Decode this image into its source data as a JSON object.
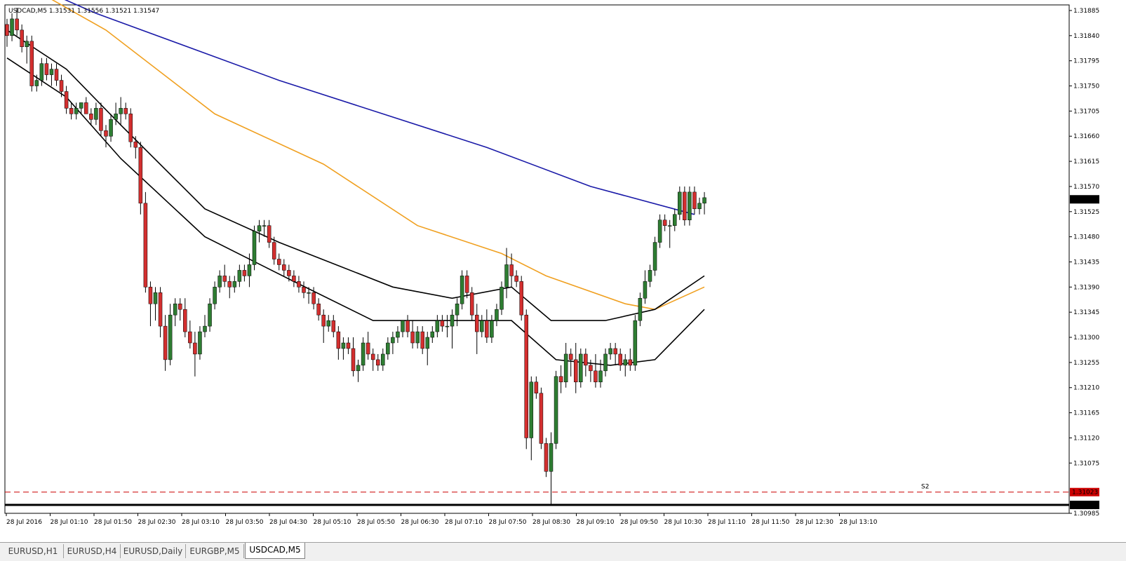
{
  "chart": {
    "symbol_header": "USDCAD,M5  1.31531 1.31556 1.31521 1.31547",
    "colors": {
      "background": "#ffffff",
      "bull": "#2e7d32",
      "bear": "#d32f2f",
      "wick": "#000000",
      "ma_blue": "#1a1aa8",
      "ma_orange": "#f0a020",
      "ma_black": "#000000",
      "s2_line": "#cc0000",
      "support_line": "#000000",
      "current_price_bg": "#000000",
      "s2_label_bg": "#cc0000"
    },
    "s2_label": "S2",
    "current_price_label": "1.31547",
    "s2_price_label": "1.31023",
    "support_price_label": "1.31000"
  },
  "tabs": [
    {
      "label": "EURUSD,H1",
      "active": false
    },
    {
      "label": "EURUSD,H4",
      "active": false
    },
    {
      "label": "EURUSD,Daily",
      "active": false
    },
    {
      "label": "EURGBP,M5",
      "active": false
    },
    {
      "label": "USDCAD,M5",
      "active": true
    }
  ],
  "chart_data": {
    "type": "candlestick",
    "symbol": "USDCAD",
    "timeframe": "M5",
    "header_ohlc": {
      "open": 1.31531,
      "high": 1.31556,
      "low": 1.31521,
      "close": 1.31547
    },
    "ylim": [
      1.30985,
      1.31895
    ],
    "y_ticks": [
      "1.31885",
      "1.31840",
      "1.31795",
      "1.31750",
      "1.31705",
      "1.31660",
      "1.31615",
      "1.31570",
      "1.31525",
      "1.31480",
      "1.31435",
      "1.31390",
      "1.31345",
      "1.31300",
      "1.31255",
      "1.31210",
      "1.31165",
      "1.31120",
      "1.31075",
      "1.30985"
    ],
    "x_ticks": [
      "28 Jul 2016",
      "28 Jul 01:10",
      "28 Jul 01:50",
      "28 Jul 02:30",
      "28 Jul 03:10",
      "28 Jul 03:50",
      "28 Jul 04:30",
      "28 Jul 05:10",
      "28 Jul 05:50",
      "28 Jul 06:30",
      "28 Jul 07:10",
      "28 Jul 07:50",
      "28 Jul 08:30",
      "28 Jul 09:10",
      "28 Jul 09:50",
      "28 Jul 10:30",
      "28 Jul 11:10",
      "28 Jul 11:50",
      "28 Jul 12:30",
      "28 Jul 13:10"
    ],
    "horizontal_lines": [
      {
        "name": "S2",
        "price": 1.31023,
        "style": "dashed"
      },
      {
        "name": "support",
        "price": 1.31,
        "style": "solid-thick"
      }
    ],
    "candles": [
      [
        1.3186,
        1.3187,
        1.3182,
        1.3184
      ],
      [
        1.3184,
        1.3188,
        1.3183,
        1.3187
      ],
      [
        1.3187,
        1.3189,
        1.3184,
        1.3185
      ],
      [
        1.3185,
        1.3186,
        1.3181,
        1.3182
      ],
      [
        1.3182,
        1.3184,
        1.3179,
        1.3183
      ],
      [
        1.3183,
        1.3184,
        1.3174,
        1.3175
      ],
      [
        1.3175,
        1.3177,
        1.3174,
        1.3176
      ],
      [
        1.3176,
        1.318,
        1.3175,
        1.3179
      ],
      [
        1.3179,
        1.318,
        1.3176,
        1.3177
      ],
      [
        1.3177,
        1.3179,
        1.3175,
        1.3178
      ],
      [
        1.3178,
        1.3179,
        1.3175,
        1.3176
      ],
      [
        1.3176,
        1.3177,
        1.3173,
        1.3174
      ],
      [
        1.3174,
        1.3175,
        1.317,
        1.3171
      ],
      [
        1.3171,
        1.3172,
        1.3169,
        1.317
      ],
      [
        1.317,
        1.3172,
        1.3169,
        1.3171
      ],
      [
        1.3171,
        1.3172,
        1.317,
        1.3172
      ],
      [
        1.3172,
        1.3173,
        1.317,
        1.317
      ],
      [
        1.317,
        1.3171,
        1.3168,
        1.3169
      ],
      [
        1.3169,
        1.3172,
        1.3168,
        1.3171
      ],
      [
        1.3171,
        1.3172,
        1.3166,
        1.3167
      ],
      [
        1.3167,
        1.3168,
        1.3164,
        1.3166
      ],
      [
        1.3166,
        1.317,
        1.3165,
        1.3169
      ],
      [
        1.3169,
        1.3172,
        1.3168,
        1.317
      ],
      [
        1.317,
        1.3173,
        1.3168,
        1.3171
      ],
      [
        1.3171,
        1.3172,
        1.3169,
        1.317
      ],
      [
        1.317,
        1.3171,
        1.3164,
        1.3165
      ],
      [
        1.3165,
        1.3166,
        1.3162,
        1.3164
      ],
      [
        1.3164,
        1.3165,
        1.3152,
        1.3154
      ],
      [
        1.3154,
        1.3156,
        1.3138,
        1.3139
      ],
      [
        1.3139,
        1.314,
        1.3132,
        1.3136
      ],
      [
        1.3136,
        1.3139,
        1.3133,
        1.3138
      ],
      [
        1.3138,
        1.3139,
        1.313,
        1.3132
      ],
      [
        1.3132,
        1.3134,
        1.3124,
        1.3126
      ],
      [
        1.3126,
        1.3136,
        1.3125,
        1.3134
      ],
      [
        1.3134,
        1.3137,
        1.3132,
        1.3136
      ],
      [
        1.3136,
        1.3137,
        1.3133,
        1.3135
      ],
      [
        1.3135,
        1.3137,
        1.313,
        1.3131
      ],
      [
        1.3131,
        1.3133,
        1.3128,
        1.3129
      ],
      [
        1.3129,
        1.3131,
        1.3123,
        1.3127
      ],
      [
        1.3127,
        1.3132,
        1.3126,
        1.3131
      ],
      [
        1.3131,
        1.3134,
        1.313,
        1.3132
      ],
      [
        1.3132,
        1.3137,
        1.3131,
        1.3136
      ],
      [
        1.3136,
        1.314,
        1.3135,
        1.3139
      ],
      [
        1.3139,
        1.3142,
        1.3138,
        1.3141
      ],
      [
        1.3141,
        1.3143,
        1.3139,
        1.314
      ],
      [
        1.314,
        1.3141,
        1.3137,
        1.3139
      ],
      [
        1.3139,
        1.3141,
        1.3138,
        1.314
      ],
      [
        1.314,
        1.3143,
        1.3139,
        1.3142
      ],
      [
        1.3142,
        1.3143,
        1.314,
        1.3141
      ],
      [
        1.3141,
        1.3145,
        1.3139,
        1.3143
      ],
      [
        1.3143,
        1.315,
        1.3142,
        1.3149
      ],
      [
        1.3149,
        1.3151,
        1.3147,
        1.315
      ],
      [
        1.315,
        1.3151,
        1.3148,
        1.315
      ],
      [
        1.315,
        1.3151,
        1.3146,
        1.3147
      ],
      [
        1.3147,
        1.3148,
        1.3143,
        1.3144
      ],
      [
        1.3144,
        1.3145,
        1.3142,
        1.3143
      ],
      [
        1.3143,
        1.3144,
        1.3141,
        1.3142
      ],
      [
        1.3142,
        1.3143,
        1.314,
        1.3141
      ],
      [
        1.3141,
        1.3142,
        1.3139,
        1.314
      ],
      [
        1.314,
        1.3141,
        1.3138,
        1.3139
      ],
      [
        1.3139,
        1.314,
        1.3137,
        1.3138
      ],
      [
        1.3138,
        1.3139,
        1.3136,
        1.3138
      ],
      [
        1.3138,
        1.3139,
        1.3135,
        1.3136
      ],
      [
        1.3136,
        1.3137,
        1.3133,
        1.3134
      ],
      [
        1.3134,
        1.3135,
        1.3129,
        1.3132
      ],
      [
        1.3132,
        1.3134,
        1.3131,
        1.3133
      ],
      [
        1.3133,
        1.3134,
        1.313,
        1.3131
      ],
      [
        1.3131,
        1.3132,
        1.3126,
        1.3128
      ],
      [
        1.3128,
        1.313,
        1.3126,
        1.3129
      ],
      [
        1.3129,
        1.313,
        1.3127,
        1.3128
      ],
      [
        1.3128,
        1.313,
        1.3123,
        1.3124
      ],
      [
        1.3124,
        1.3126,
        1.3122,
        1.3125
      ],
      [
        1.3125,
        1.313,
        1.3124,
        1.3129
      ],
      [
        1.3129,
        1.3131,
        1.3126,
        1.3127
      ],
      [
        1.3127,
        1.3128,
        1.3124,
        1.3126
      ],
      [
        1.3126,
        1.3127,
        1.3124,
        1.3125
      ],
      [
        1.3125,
        1.3128,
        1.3124,
        1.3127
      ],
      [
        1.3127,
        1.313,
        1.3126,
        1.3129
      ],
      [
        1.3129,
        1.3131,
        1.3127,
        1.313
      ],
      [
        1.313,
        1.3132,
        1.3129,
        1.3131
      ],
      [
        1.3131,
        1.3133,
        1.313,
        1.3133
      ],
      [
        1.3133,
        1.3134,
        1.313,
        1.3131
      ],
      [
        1.3131,
        1.3133,
        1.3128,
        1.3129
      ],
      [
        1.3129,
        1.3132,
        1.3128,
        1.3131
      ],
      [
        1.3131,
        1.3132,
        1.3127,
        1.3128
      ],
      [
        1.3128,
        1.3131,
        1.3125,
        1.313
      ],
      [
        1.313,
        1.3132,
        1.3129,
        1.3131
      ],
      [
        1.3131,
        1.3134,
        1.313,
        1.3133
      ],
      [
        1.3133,
        1.3134,
        1.3131,
        1.3132
      ],
      [
        1.3132,
        1.3134,
        1.313,
        1.3132
      ],
      [
        1.3132,
        1.3135,
        1.3128,
        1.3134
      ],
      [
        1.3134,
        1.3137,
        1.3132,
        1.3136
      ],
      [
        1.3136,
        1.3142,
        1.3135,
        1.3141
      ],
      [
        1.3141,
        1.3142,
        1.3137,
        1.3138
      ],
      [
        1.3138,
        1.3139,
        1.3133,
        1.3134
      ],
      [
        1.3134,
        1.3136,
        1.3127,
        1.3131
      ],
      [
        1.3131,
        1.3134,
        1.313,
        1.3133
      ],
      [
        1.3133,
        1.3135,
        1.3129,
        1.313
      ],
      [
        1.313,
        1.3134,
        1.3129,
        1.3133
      ],
      [
        1.3133,
        1.3136,
        1.3132,
        1.3135
      ],
      [
        1.3135,
        1.314,
        1.3134,
        1.3139
      ],
      [
        1.3139,
        1.3146,
        1.3137,
        1.3143
      ],
      [
        1.3143,
        1.3145,
        1.3139,
        1.3141
      ],
      [
        1.3141,
        1.3142,
        1.3139,
        1.314
      ],
      [
        1.314,
        1.3141,
        1.3133,
        1.3134
      ],
      [
        1.3134,
        1.3135,
        1.311,
        1.3112
      ],
      [
        1.3112,
        1.3123,
        1.3108,
        1.3122
      ],
      [
        1.3122,
        1.3123,
        1.3119,
        1.312
      ],
      [
        1.312,
        1.3121,
        1.311,
        1.3111
      ],
      [
        1.3111,
        1.3112,
        1.3105,
        1.3106
      ],
      [
        1.3106,
        1.3113,
        1.31,
        1.3111
      ],
      [
        1.3111,
        1.3124,
        1.311,
        1.3123
      ],
      [
        1.3123,
        1.3125,
        1.312,
        1.3122
      ],
      [
        1.3122,
        1.3129,
        1.3121,
        1.3127
      ],
      [
        1.3127,
        1.3128,
        1.3123,
        1.3126
      ],
      [
        1.3126,
        1.3129,
        1.312,
        1.3122
      ],
      [
        1.3122,
        1.3128,
        1.3121,
        1.3127
      ],
      [
        1.3127,
        1.3128,
        1.3123,
        1.3125
      ],
      [
        1.3125,
        1.3126,
        1.3122,
        1.3124
      ],
      [
        1.3124,
        1.3127,
        1.3121,
        1.3122
      ],
      [
        1.3122,
        1.3126,
        1.3121,
        1.3124
      ],
      [
        1.3124,
        1.3128,
        1.3123,
        1.3127
      ],
      [
        1.3127,
        1.3129,
        1.3126,
        1.3128
      ],
      [
        1.3128,
        1.3129,
        1.3125,
        1.3127
      ],
      [
        1.3127,
        1.3128,
        1.3124,
        1.3125
      ],
      [
        1.3125,
        1.3127,
        1.3123,
        1.3126
      ],
      [
        1.3126,
        1.3128,
        1.3124,
        1.3125
      ],
      [
        1.3125,
        1.3134,
        1.3124,
        1.3133
      ],
      [
        1.3133,
        1.3138,
        1.3132,
        1.3137
      ],
      [
        1.3137,
        1.3142,
        1.3136,
        1.314
      ],
      [
        1.314,
        1.3143,
        1.3139,
        1.3142
      ],
      [
        1.3142,
        1.3148,
        1.3141,
        1.3147
      ],
      [
        1.3147,
        1.3152,
        1.3146,
        1.3151
      ],
      [
        1.3151,
        1.3152,
        1.3149,
        1.315
      ],
      [
        1.315,
        1.3151,
        1.3146,
        1.315
      ],
      [
        1.315,
        1.3153,
        1.3149,
        1.3152
      ],
      [
        1.3152,
        1.3157,
        1.3151,
        1.3156
      ],
      [
        1.3156,
        1.3157,
        1.315,
        1.3151
      ],
      [
        1.3151,
        1.3157,
        1.315,
        1.3156
      ],
      [
        1.3156,
        1.3157,
        1.3152,
        1.3153
      ],
      [
        1.3153,
        1.3155,
        1.3152,
        1.3154
      ],
      [
        1.3154,
        1.3156,
        1.3152,
        1.3155
      ]
    ],
    "moving_averages": [
      {
        "color": "blue",
        "points": [
          [
            1.3195,
            0
          ],
          [
            1.3188,
            18
          ],
          [
            1.3176,
            55
          ],
          [
            1.3164,
            97
          ],
          [
            1.3157,
            118
          ],
          [
            1.3152,
            139
          ]
        ]
      },
      {
        "color": "orange",
        "points": [
          [
            1.3195,
            0
          ],
          [
            1.3185,
            20
          ],
          [
            1.317,
            42
          ],
          [
            1.3161,
            64
          ],
          [
            1.315,
            83
          ],
          [
            1.3145,
            100
          ],
          [
            1.3141,
            109
          ],
          [
            1.3136,
            125
          ],
          [
            1.3135,
            131
          ],
          [
            1.3139,
            141
          ]
        ]
      },
      {
        "color": "black",
        "points": [
          [
            1.3185,
            0
          ],
          [
            1.3178,
            12
          ],
          [
            1.3168,
            23
          ],
          [
            1.3153,
            40
          ],
          [
            1.3147,
            55
          ],
          [
            1.3139,
            78
          ],
          [
            1.3137,
            90
          ],
          [
            1.3139,
            102
          ],
          [
            1.3133,
            110
          ],
          [
            1.3133,
            121
          ],
          [
            1.3135,
            131
          ],
          [
            1.3141,
            141
          ]
        ]
      },
      {
        "color": "black",
        "points": [
          [
            1.318,
            0
          ],
          [
            1.3173,
            12
          ],
          [
            1.3162,
            23
          ],
          [
            1.3148,
            40
          ],
          [
            1.314,
            58
          ],
          [
            1.3133,
            74
          ],
          [
            1.3133,
            90
          ],
          [
            1.3133,
            102
          ],
          [
            1.3126,
            111
          ],
          [
            1.3125,
            122
          ],
          [
            1.3126,
            131
          ],
          [
            1.3135,
            141
          ]
        ]
      }
    ]
  }
}
